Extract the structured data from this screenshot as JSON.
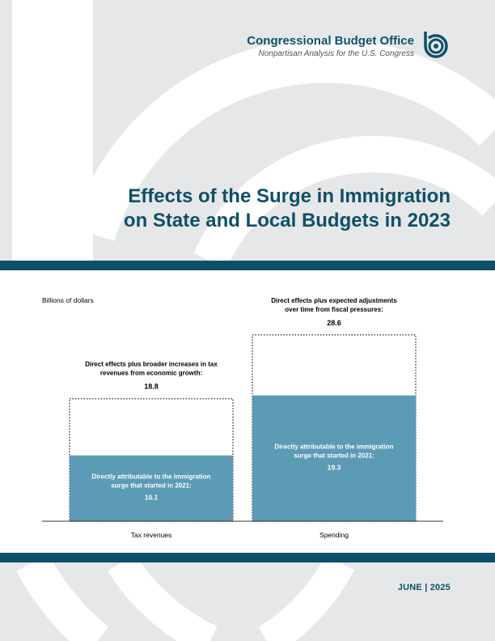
{
  "header": {
    "org_name": "Congressional Budget Office",
    "tagline": "Nonpartisan Analysis for the U.S. Congress"
  },
  "title": {
    "line1": "Effects of the Surge in Immigration",
    "line2": "on State and Local Budgets in 2023"
  },
  "date": "JUNE | 2025",
  "colors": {
    "brand": "#0e5069",
    "bar_fill": "#5b9bb5",
    "background": "#e6e7e8",
    "arc": "#ffffff"
  },
  "icons": [
    "cbo-logo-icon"
  ],
  "chart_data": {
    "type": "bar",
    "ylabel": "Billions of dollars",
    "categories": [
      "Tax revenues",
      "Spending"
    ],
    "ylim": [
      0,
      30
    ],
    "series": [
      {
        "values": [
          10.1,
          19.3
        ],
        "labels": [
          [
            "Directly attributable to the immigration",
            "surge that started in 2021:"
          ],
          [
            "Directly attributable to the immigration",
            "surge that started in 2021:"
          ]
        ],
        "value_labels": [
          "10.1",
          "19.3"
        ]
      },
      {
        "values": [
          18.8,
          28.6
        ],
        "labels": [
          [
            "Direct effects plus broader increases in tax",
            "revenues from economic growth:"
          ],
          [
            "Direct effects plus expected adjustments",
            "over time from fiscal pressures:"
          ]
        ],
        "value_labels": [
          "18.8",
          "28.6"
        ]
      }
    ],
    "grid": false,
    "legend": "none"
  }
}
